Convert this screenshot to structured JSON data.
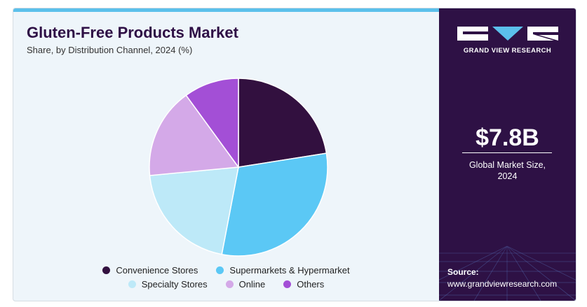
{
  "header": {
    "title": "Gluten-Free Products Market",
    "subtitle": "Share, by Distribution Channel, 2024 (%)"
  },
  "chart_data": {
    "type": "pie",
    "title": "Gluten-Free Products Market",
    "subtitle": "Share, by Distribution Channel, 2024 (%)",
    "categories": [
      "Convenience Stores",
      "Supermarkets & Hypermarket",
      "Specialty Stores",
      "Online",
      "Others"
    ],
    "values": [
      22.5,
      30.5,
      20.5,
      16.5,
      10.0
    ],
    "colors": [
      "#32103f",
      "#5bc8f5",
      "#bde9f8",
      "#d4a9e8",
      "#a34fd6"
    ],
    "legend_position": "bottom",
    "start_angle_deg": 0,
    "direction": "clockwise"
  },
  "legend": {
    "items": [
      {
        "label": "Convenience Stores",
        "color": "#32103f"
      },
      {
        "label": "Supermarkets & Hypermarket",
        "color": "#5bc8f5"
      },
      {
        "label": "Specialty Stores",
        "color": "#bde9f8"
      },
      {
        "label": "Online",
        "color": "#d4a9e8"
      },
      {
        "label": "Others",
        "color": "#a34fd6"
      }
    ]
  },
  "sidebar": {
    "brand": "GRAND VIEW RESEARCH",
    "value": "$7.8B",
    "value_label_line1": "Global Market Size,",
    "value_label_line2": "2024",
    "source_label": "Source:",
    "source_url": "www.grandviewresearch.com"
  },
  "colors": {
    "sidebar_bg": "#2e1145",
    "title": "#2e0f45",
    "accent": "#5bc0eb",
    "panel_bg": "#eef5fa"
  },
  "icons": {
    "logo": "gvr-logo-icon"
  }
}
